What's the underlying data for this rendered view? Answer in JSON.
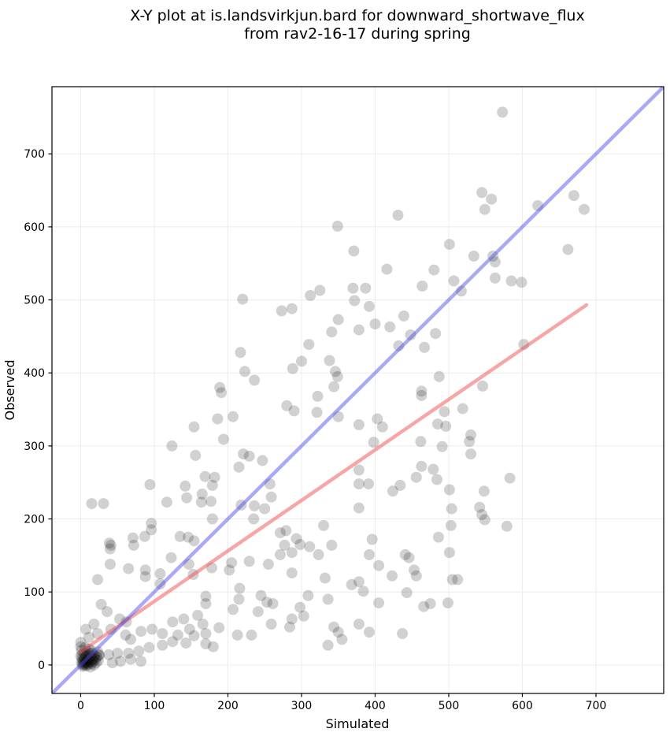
{
  "figure": {
    "title_line1": "X-Y plot at is.landsvirkjun.bard for downward_shortwave_flux",
    "title_line2": "from rav2-16-17 during spring"
  },
  "colors": {
    "background": "#ffffff",
    "grid": "#ececec",
    "axis": "#000000",
    "text": "#000000",
    "scatter": "rgba(0,0,0,0.18)",
    "one_to_one_line": "rgba(75,75,235,0.48)",
    "regression_line": "rgba(240,85,85,0.52)"
  },
  "chart_data": {
    "type": "scatter",
    "title": "X-Y plot at is.landsvirkjun.bard for downward_shortwave_flux from rav2-16-17 during spring",
    "xlabel": "Simulated",
    "ylabel": "Observed",
    "xlim": [
      -39,
      792
    ],
    "ylim": [
      -39,
      792
    ],
    "xticks": [
      0,
      100,
      200,
      300,
      400,
      500,
      600,
      700
    ],
    "yticks": [
      0,
      100,
      200,
      300,
      400,
      500,
      600,
      700
    ],
    "grid": true,
    "legend": "none",
    "marker": {
      "radius": 7,
      "color": "rgba(0,0,0,0.18)"
    },
    "lines": [
      {
        "name": "regression-line",
        "x": [
          0,
          687
        ],
        "y": [
          18,
          493
        ],
        "color": "rgba(240,85,85,0.52)",
        "width": 4.5
      },
      {
        "name": "one-to-one-line",
        "x": [
          -39,
          792
        ],
        "y": [
          -39,
          792
        ],
        "color": "rgba(75,75,235,0.48)",
        "width": 4.5
      }
    ],
    "points": [
      [
        349,
        601
      ],
      [
        371,
        567
      ],
      [
        220,
        501
      ],
      [
        273,
        485
      ],
      [
        287,
        488
      ],
      [
        312,
        506
      ],
      [
        325,
        513
      ],
      [
        350,
        473
      ],
      [
        341,
        456
      ],
      [
        370,
        516
      ],
      [
        372,
        499
      ],
      [
        310,
        439
      ],
      [
        217,
        428
      ],
      [
        300,
        416
      ],
      [
        338,
        417
      ],
      [
        223,
        402
      ],
      [
        236,
        390
      ],
      [
        288,
        406
      ],
      [
        346,
        402
      ],
      [
        349,
        395
      ],
      [
        189,
        380
      ],
      [
        344,
        381
      ],
      [
        573,
        757
      ],
      [
        545,
        647
      ],
      [
        558,
        638
      ],
      [
        549,
        624
      ],
      [
        621,
        629
      ],
      [
        670,
        643
      ],
      [
        684,
        624
      ],
      [
        431,
        616
      ],
      [
        501,
        576
      ],
      [
        560,
        560
      ],
      [
        563,
        552
      ],
      [
        534,
        560
      ],
      [
        662,
        569
      ],
      [
        416,
        542
      ],
      [
        480,
        541
      ],
      [
        464,
        519
      ],
      [
        507,
        526
      ],
      [
        517,
        512
      ],
      [
        563,
        530
      ],
      [
        585,
        526
      ],
      [
        599,
        524
      ],
      [
        387,
        516
      ],
      [
        392,
        491
      ],
      [
        400,
        467
      ],
      [
        420,
        463
      ],
      [
        439,
        478
      ],
      [
        448,
        452
      ],
      [
        432,
        437
      ],
      [
        482,
        454
      ],
      [
        467,
        435
      ],
      [
        378,
        459
      ],
      [
        602,
        439
      ],
      [
        487,
        395
      ],
      [
        546,
        382
      ],
      [
        463,
        375
      ],
      [
        186,
        337
      ],
      [
        207,
        340
      ],
      [
        154,
        326
      ],
      [
        280,
        355
      ],
      [
        290,
        348
      ],
      [
        322,
        368
      ],
      [
        321,
        346
      ],
      [
        350,
        340
      ],
      [
        191,
        373
      ],
      [
        124,
        300
      ],
      [
        156,
        287
      ],
      [
        194,
        309
      ],
      [
        221,
        289
      ],
      [
        229,
        286
      ],
      [
        247,
        280
      ],
      [
        215,
        271
      ],
      [
        169,
        258
      ],
      [
        182,
        257
      ],
      [
        94,
        247
      ],
      [
        142,
        245
      ],
      [
        165,
        234
      ],
      [
        179,
        246
      ],
      [
        15,
        221
      ],
      [
        31,
        221
      ],
      [
        117,
        223
      ],
      [
        144,
        229
      ],
      [
        164,
        223
      ],
      [
        177,
        224
      ],
      [
        218,
        219
      ],
      [
        236,
        218
      ],
      [
        250,
        214
      ],
      [
        259,
        230
      ],
      [
        257,
        248
      ],
      [
        235,
        200
      ],
      [
        179,
        200
      ],
      [
        96,
        194
      ],
      [
        96,
        185
      ],
      [
        71,
        174
      ],
      [
        87,
        176
      ],
      [
        135,
        176
      ],
      [
        146,
        175
      ],
      [
        154,
        170
      ],
      [
        41,
        164
      ],
      [
        271,
        181
      ],
      [
        279,
        184
      ],
      [
        293,
        173
      ],
      [
        330,
        191
      ],
      [
        463,
        369
      ],
      [
        519,
        351
      ],
      [
        494,
        347
      ],
      [
        403,
        337
      ],
      [
        410,
        326
      ],
      [
        485,
        330
      ],
      [
        496,
        327
      ],
      [
        378,
        329
      ],
      [
        398,
        305
      ],
      [
        462,
        306
      ],
      [
        491,
        299
      ],
      [
        530,
        315
      ],
      [
        528,
        306
      ],
      [
        530,
        289
      ],
      [
        463,
        272
      ],
      [
        479,
        268
      ],
      [
        456,
        257
      ],
      [
        484,
        254
      ],
      [
        378,
        267
      ],
      [
        378,
        248
      ],
      [
        391,
        248
      ],
      [
        424,
        238
      ],
      [
        434,
        246
      ],
      [
        583,
        256
      ],
      [
        501,
        240
      ],
      [
        548,
        238
      ],
      [
        378,
        215
      ],
      [
        504,
        214
      ],
      [
        542,
        216
      ],
      [
        545,
        206
      ],
      [
        549,
        199
      ],
      [
        503,
        191
      ],
      [
        579,
        190
      ],
      [
        486,
        175
      ],
      [
        396,
        172
      ],
      [
        39,
        167
      ],
      [
        40,
        159
      ],
      [
        72,
        164
      ],
      [
        40,
        138
      ],
      [
        65,
        132
      ],
      [
        88,
        130
      ],
      [
        88,
        121
      ],
      [
        108,
        125
      ],
      [
        123,
        147
      ],
      [
        147,
        138
      ],
      [
        23,
        117
      ],
      [
        108,
        111
      ],
      [
        153,
        124
      ],
      [
        28,
        83
      ],
      [
        36,
        73
      ],
      [
        53,
        63
      ],
      [
        62,
        59
      ],
      [
        18,
        56
      ],
      [
        7,
        49
      ],
      [
        0,
        31
      ],
      [
        0,
        25
      ],
      [
        11,
        38
      ],
      [
        23,
        43
      ],
      [
        41,
        49
      ],
      [
        61,
        41
      ],
      [
        68,
        35
      ],
      [
        82,
        46
      ],
      [
        97,
        49
      ],
      [
        111,
        43
      ],
      [
        125,
        59
      ],
      [
        140,
        63
      ],
      [
        159,
        68
      ],
      [
        166,
        56
      ],
      [
        148,
        49
      ],
      [
        154,
        40
      ],
      [
        132,
        41
      ],
      [
        125,
        32
      ],
      [
        143,
        30
      ],
      [
        111,
        27
      ],
      [
        93,
        24
      ],
      [
        79,
        19
      ],
      [
        65,
        16
      ],
      [
        50,
        16
      ],
      [
        38,
        14
      ],
      [
        25,
        13
      ],
      [
        43,
        3
      ],
      [
        54,
        5
      ],
      [
        68,
        8
      ],
      [
        82,
        5
      ],
      [
        2,
        1
      ],
      [
        4,
        3
      ],
      [
        6,
        1
      ],
      [
        8,
        4
      ],
      [
        10,
        2
      ],
      [
        12,
        5
      ],
      [
        3,
        6
      ],
      [
        5,
        8
      ],
      [
        7,
        3
      ],
      [
        9,
        7
      ],
      [
        11,
        9
      ],
      [
        14,
        4
      ],
      [
        16,
        7
      ],
      [
        18,
        10
      ],
      [
        6,
        11
      ],
      [
        13,
        12
      ],
      [
        1,
        4
      ],
      [
        2,
        9
      ],
      [
        15,
        2
      ],
      [
        17,
        5
      ],
      [
        20,
        8
      ],
      [
        8,
        13
      ],
      [
        4,
        0
      ],
      [
        10,
        0
      ],
      [
        19,
        13
      ],
      [
        12,
        15
      ],
      [
        22,
        11
      ],
      [
        24,
        6
      ],
      [
        3,
        -2
      ],
      [
        7,
        -1
      ],
      [
        5,
        16
      ],
      [
        9,
        18
      ],
      [
        14,
        20
      ],
      [
        2,
        14
      ],
      [
        11,
        22
      ],
      [
        6,
        24
      ],
      [
        16,
        16
      ],
      [
        13,
        -3
      ],
      [
        18,
        0
      ],
      [
        21,
        3
      ],
      [
        0,
        12
      ],
      [
        1,
        20
      ],
      [
        23,
        18
      ],
      [
        25,
        14
      ],
      [
        277,
        164
      ],
      [
        298,
        165
      ],
      [
        311,
        162
      ],
      [
        287,
        154
      ],
      [
        271,
        151
      ],
      [
        323,
        151
      ],
      [
        341,
        164
      ],
      [
        205,
        140
      ],
      [
        229,
        142
      ],
      [
        255,
        138
      ],
      [
        178,
        133
      ],
      [
        202,
        130
      ],
      [
        287,
        126
      ],
      [
        332,
        119
      ],
      [
        368,
        110
      ],
      [
        216,
        105
      ],
      [
        215,
        90
      ],
      [
        245,
        95
      ],
      [
        253,
        86
      ],
      [
        261,
        84
      ],
      [
        309,
        95
      ],
      [
        336,
        90
      ],
      [
        170,
        94
      ],
      [
        170,
        84
      ],
      [
        207,
        76
      ],
      [
        241,
        73
      ],
      [
        298,
        79
      ],
      [
        303,
        67
      ],
      [
        287,
        63
      ],
      [
        259,
        56
      ],
      [
        284,
        52
      ],
      [
        344,
        52
      ],
      [
        350,
        45
      ],
      [
        355,
        35
      ],
      [
        336,
        27
      ],
      [
        188,
        51
      ],
      [
        170,
        43
      ],
      [
        170,
        29
      ],
      [
        180,
        25
      ],
      [
        213,
        41
      ],
      [
        232,
        41
      ],
      [
        392,
        151
      ],
      [
        405,
        136
      ],
      [
        441,
        151
      ],
      [
        446,
        147
      ],
      [
        501,
        154
      ],
      [
        423,
        122
      ],
      [
        453,
        130
      ],
      [
        456,
        122
      ],
      [
        505,
        117
      ],
      [
        512,
        117
      ],
      [
        378,
        114
      ],
      [
        384,
        101
      ],
      [
        443,
        99
      ],
      [
        405,
        85
      ],
      [
        466,
        80
      ],
      [
        475,
        84
      ],
      [
        499,
        85
      ],
      [
        378,
        56
      ],
      [
        392,
        45
      ],
      [
        437,
        43
      ]
    ]
  }
}
